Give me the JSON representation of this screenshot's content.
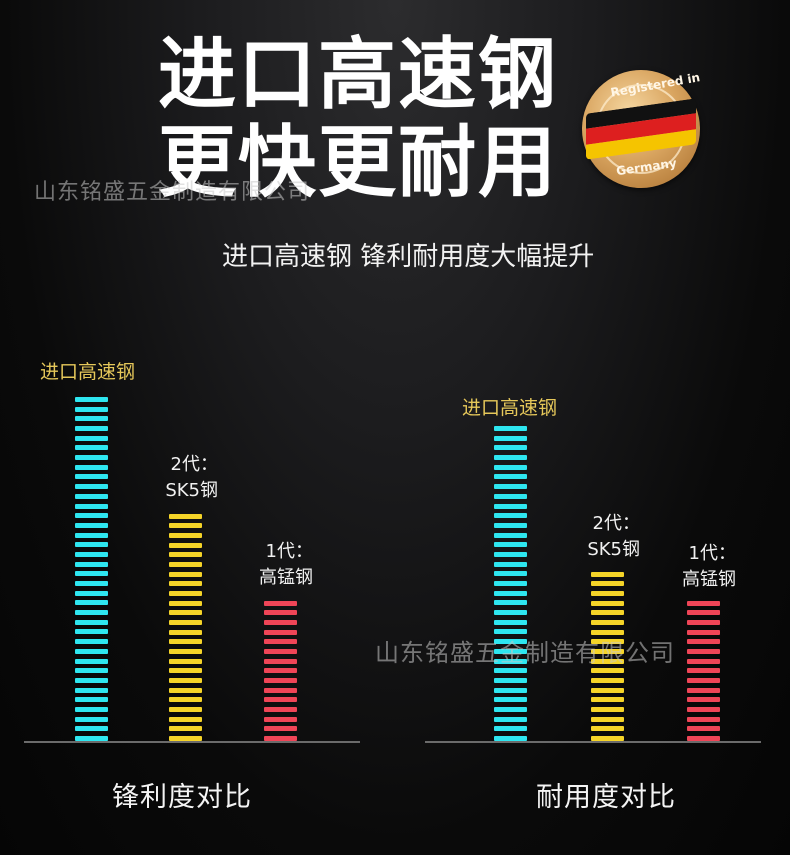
{
  "header": {
    "title_line1": "进口高速钢",
    "title_line2": "更快更耐用",
    "subtitle": "进口高速钢 锋利耐用度大幅提升",
    "badge": {
      "top_text": "Registered in",
      "bottom_text": "Germany",
      "flag_colors": [
        "#111111",
        "#dd1f1f",
        "#f5c400"
      ]
    }
  },
  "watermark": {
    "text": "山东铭盛五金制造有限公司"
  },
  "colors": {
    "cyan": "#2ee6f0",
    "yellow": "#f5d428",
    "red": "#ef4557",
    "label_gold": "#e6c85a",
    "baseline": "#6b6b6b"
  },
  "chart_data": [
    {
      "type": "bar",
      "title": "锋利度对比",
      "categories": [
        "进口高速钢",
        "2代：SK5钢",
        "1代：高锰钢"
      ],
      "values": [
        36,
        24,
        15
      ],
      "unit": "stripes (relative)",
      "colors": [
        "#2ee6f0",
        "#f5d428",
        "#ef4557"
      ],
      "xlabel": "",
      "ylabel": "",
      "grid": false
    },
    {
      "type": "bar",
      "title": "耐用度对比",
      "categories": [
        "进口高速钢",
        "2代：SK5钢",
        "1代：高锰钢"
      ],
      "values": [
        33,
        18,
        15
      ],
      "unit": "stripes (relative)",
      "colors": [
        "#2ee6f0",
        "#f5d428",
        "#ef4557"
      ],
      "xlabel": "",
      "ylabel": "",
      "grid": false
    }
  ],
  "charts": [
    {
      "caption": "锋利度对比",
      "bars": [
        {
          "label1": "进口高速钢",
          "label2": "",
          "stripes": 36
        },
        {
          "label1": "2代：",
          "label2": "SK5钢",
          "stripes": 24
        },
        {
          "label1": "1代：",
          "label2": "高锰钢",
          "stripes": 15
        }
      ]
    },
    {
      "caption": "耐用度对比",
      "bars": [
        {
          "label1": "进口高速钢",
          "label2": "",
          "stripes": 33
        },
        {
          "label1": "2代：",
          "label2": "SK5钢",
          "stripes": 18
        },
        {
          "label1": "1代：",
          "label2": "高锰钢",
          "stripes": 15
        }
      ]
    }
  ]
}
